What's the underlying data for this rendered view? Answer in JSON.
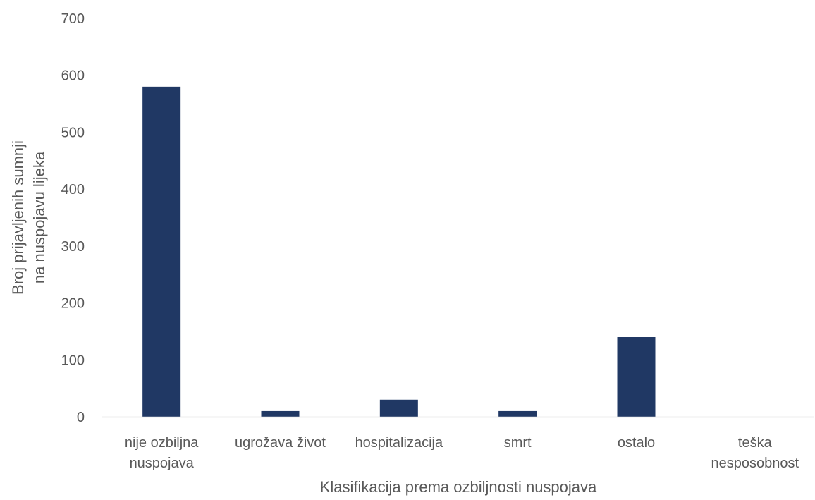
{
  "chart_data": {
    "type": "bar",
    "categories": [
      [
        "nije ozbiljna",
        "nuspojava"
      ],
      [
        "ugrožava život"
      ],
      [
        "hospitalizacija"
      ],
      [
        "smrt"
      ],
      [
        "ostalo"
      ],
      [
        "teška",
        "nesposobnost"
      ]
    ],
    "values": [
      580,
      10,
      30,
      10,
      140,
      0
    ],
    "xlabel": "Klasifikacija prema ozbiljnosti nuspojava",
    "ylabel": [
      "Broj prijavljenih sumnji",
      "na nuspojavu lijeka"
    ],
    "ylim": [
      0,
      700
    ],
    "yticks": [
      0,
      100,
      200,
      300,
      400,
      500,
      600,
      700
    ],
    "grid": false,
    "bar_color": "#203864",
    "axis_color": "#d9d9d9"
  }
}
